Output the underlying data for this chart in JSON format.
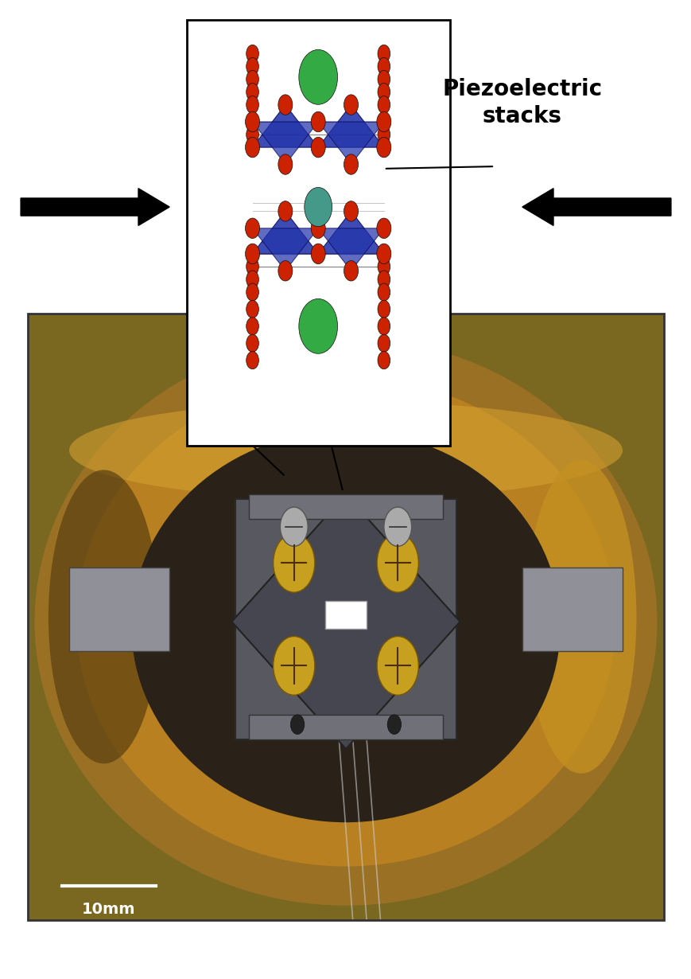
{
  "fig_width": 8.7,
  "fig_height": 12.3,
  "bg_color": "#ffffff",
  "label_text": "Piezoelectric\nstacks",
  "label_fontsize": 20,
  "scalebar_text": "10mm",
  "red_atom_color": "#cc2200",
  "blue_tetra_color": "#2233aa",
  "green_atom_color": "#33aa44",
  "teal_atom_color": "#449988"
}
